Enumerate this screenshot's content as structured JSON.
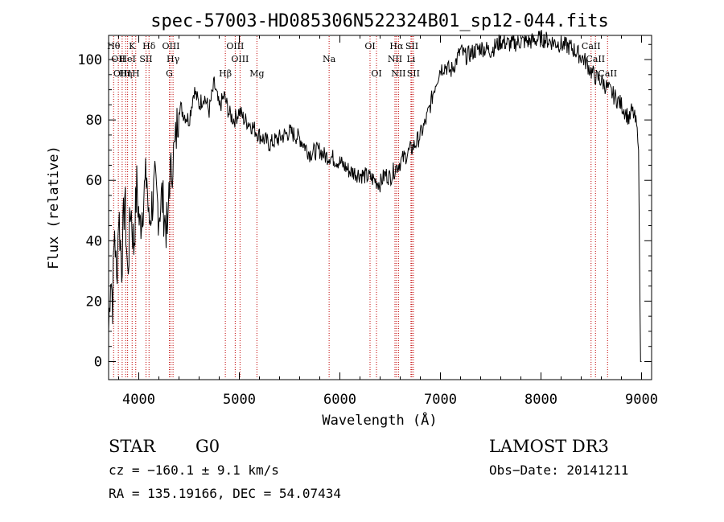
{
  "chart_data": {
    "type": "line",
    "title": "spec-57003-HD085306N522324B01_sp12-044.fits",
    "xlabel": "Wavelength (Å)",
    "ylabel": "Flux (relative)",
    "xlim": [
      3700,
      9100
    ],
    "ylim": [
      -6,
      108
    ],
    "x_ticks": [
      4000,
      5000,
      6000,
      7000,
      8000,
      9000
    ],
    "y_ticks": [
      0,
      20,
      40,
      60,
      80,
      100
    ],
    "grid": false,
    "legend": "none",
    "line_color": "#000000",
    "marker_color": "#c00000",
    "series": [
      {
        "x": [
          3700,
          3720,
          3740,
          3760,
          3780,
          3800,
          3830,
          3860,
          3890,
          3920,
          3950,
          3980,
          4010,
          4050,
          4080,
          4100,
          4130,
          4160,
          4200,
          4230,
          4260,
          4290,
          4300,
          4320,
          4340,
          4360,
          4380,
          4400,
          4450,
          4500,
          4550,
          4600,
          4650,
          4700,
          4750,
          4800,
          4850,
          4900,
          4950,
          5000,
          5050,
          5100,
          5150,
          5200,
          5300,
          5400,
          5500,
          5600,
          5700,
          5800,
          5850,
          5900,
          6000,
          6100,
          6200,
          6300,
          6350,
          6400,
          6450,
          6500,
          6550,
          6600,
          6650,
          6700,
          6750,
          6800,
          6850,
          6900,
          6950,
          7000,
          7050,
          7100,
          7150,
          7200,
          7250,
          7300,
          7400,
          7500,
          7600,
          7700,
          7800,
          7900,
          8000,
          8100,
          8200,
          8300,
          8400,
          8450,
          8500,
          8550,
          8600,
          8650,
          8700,
          8750,
          8800,
          8850,
          8880,
          8900,
          8920,
          8950,
          8970,
          8980,
          8990,
          9000
        ],
        "y": [
          10,
          30,
          20,
          45,
          25,
          50,
          32,
          55,
          28,
          52,
          38,
          58,
          44,
          55,
          62,
          45,
          52,
          58,
          49,
          55,
          47,
          42,
          60,
          62,
          68,
          70,
          78,
          85,
          82,
          80,
          90,
          85,
          88,
          83,
          92,
          84,
          88,
          82,
          80,
          83,
          80,
          79,
          77,
          75,
          72,
          74,
          76,
          74,
          69,
          70,
          68,
          68,
          66,
          63,
          62,
          61,
          60,
          59,
          62,
          61,
          64,
          66,
          68,
          70,
          72,
          75,
          79,
          85,
          92,
          97,
          98,
          96,
          99,
          103,
          101,
          102,
          104,
          103,
          106,
          105,
          106,
          106,
          107,
          106,
          105,
          104,
          101,
          99,
          96,
          94,
          93,
          91,
          89,
          87,
          85,
          82,
          80,
          83,
          82,
          78,
          70,
          35,
          0,
          0
        ]
      }
    ],
    "line_markers": [
      {
        "x": 3750,
        "label": "Hθ",
        "row": 0
      },
      {
        "x": 3797,
        "label": "OII",
        "row": 1
      },
      {
        "x": 3835,
        "label": "OIII",
        "row": 2
      },
      {
        "x": 3870,
        "label": "Hη",
        "row": 2
      },
      {
        "x": 3889,
        "label": "HeI",
        "row": 1
      },
      {
        "x": 3934,
        "label": "K",
        "row": 0
      },
      {
        "x": 3970,
        "label": "H",
        "row": 2
      },
      {
        "x": 4072,
        "label": "SII",
        "row": 1
      },
      {
        "x": 4102,
        "label": "Hδ",
        "row": 0
      },
      {
        "x": 4304,
        "label": "G",
        "row": 2
      },
      {
        "x": 4320,
        "label": "OIII",
        "row": 0
      },
      {
        "x": 4341,
        "label": "Hγ",
        "row": 1
      },
      {
        "x": 4861,
        "label": "Hβ",
        "row": 2
      },
      {
        "x": 4959,
        "label": "OIII",
        "row": 0
      },
      {
        "x": 5007,
        "label": "OIII",
        "row": 1
      },
      {
        "x": 5175,
        "label": "Mg",
        "row": 2
      },
      {
        "x": 5893,
        "label": "Na",
        "row": 1
      },
      {
        "x": 6300,
        "label": "OI",
        "row": 0
      },
      {
        "x": 6364,
        "label": "OI",
        "row": 2
      },
      {
        "x": 6548,
        "label": "NII",
        "row": 1
      },
      {
        "x": 6563,
        "label": "Hα",
        "row": 0
      },
      {
        "x": 6583,
        "label": "NII",
        "row": 2
      },
      {
        "x": 6707,
        "label": "Li",
        "row": 1
      },
      {
        "x": 6716,
        "label": "SII",
        "row": 0
      },
      {
        "x": 6731,
        "label": "SII",
        "row": 2
      },
      {
        "x": 8498,
        "label": "CaII",
        "row": 0
      },
      {
        "x": 8542,
        "label": "CaII",
        "row": 1
      },
      {
        "x": 8662,
        "label": "CaII",
        "row": 2
      }
    ]
  },
  "info": {
    "object_class": "STAR",
    "subclass": "G0",
    "survey": "LAMOST DR3",
    "cz": "cz = −160.1 ± 9.1 km/s",
    "obs_date": "Obs−Date: 20141211",
    "radec": "RA = 135.19166, DEC =  54.07434"
  }
}
